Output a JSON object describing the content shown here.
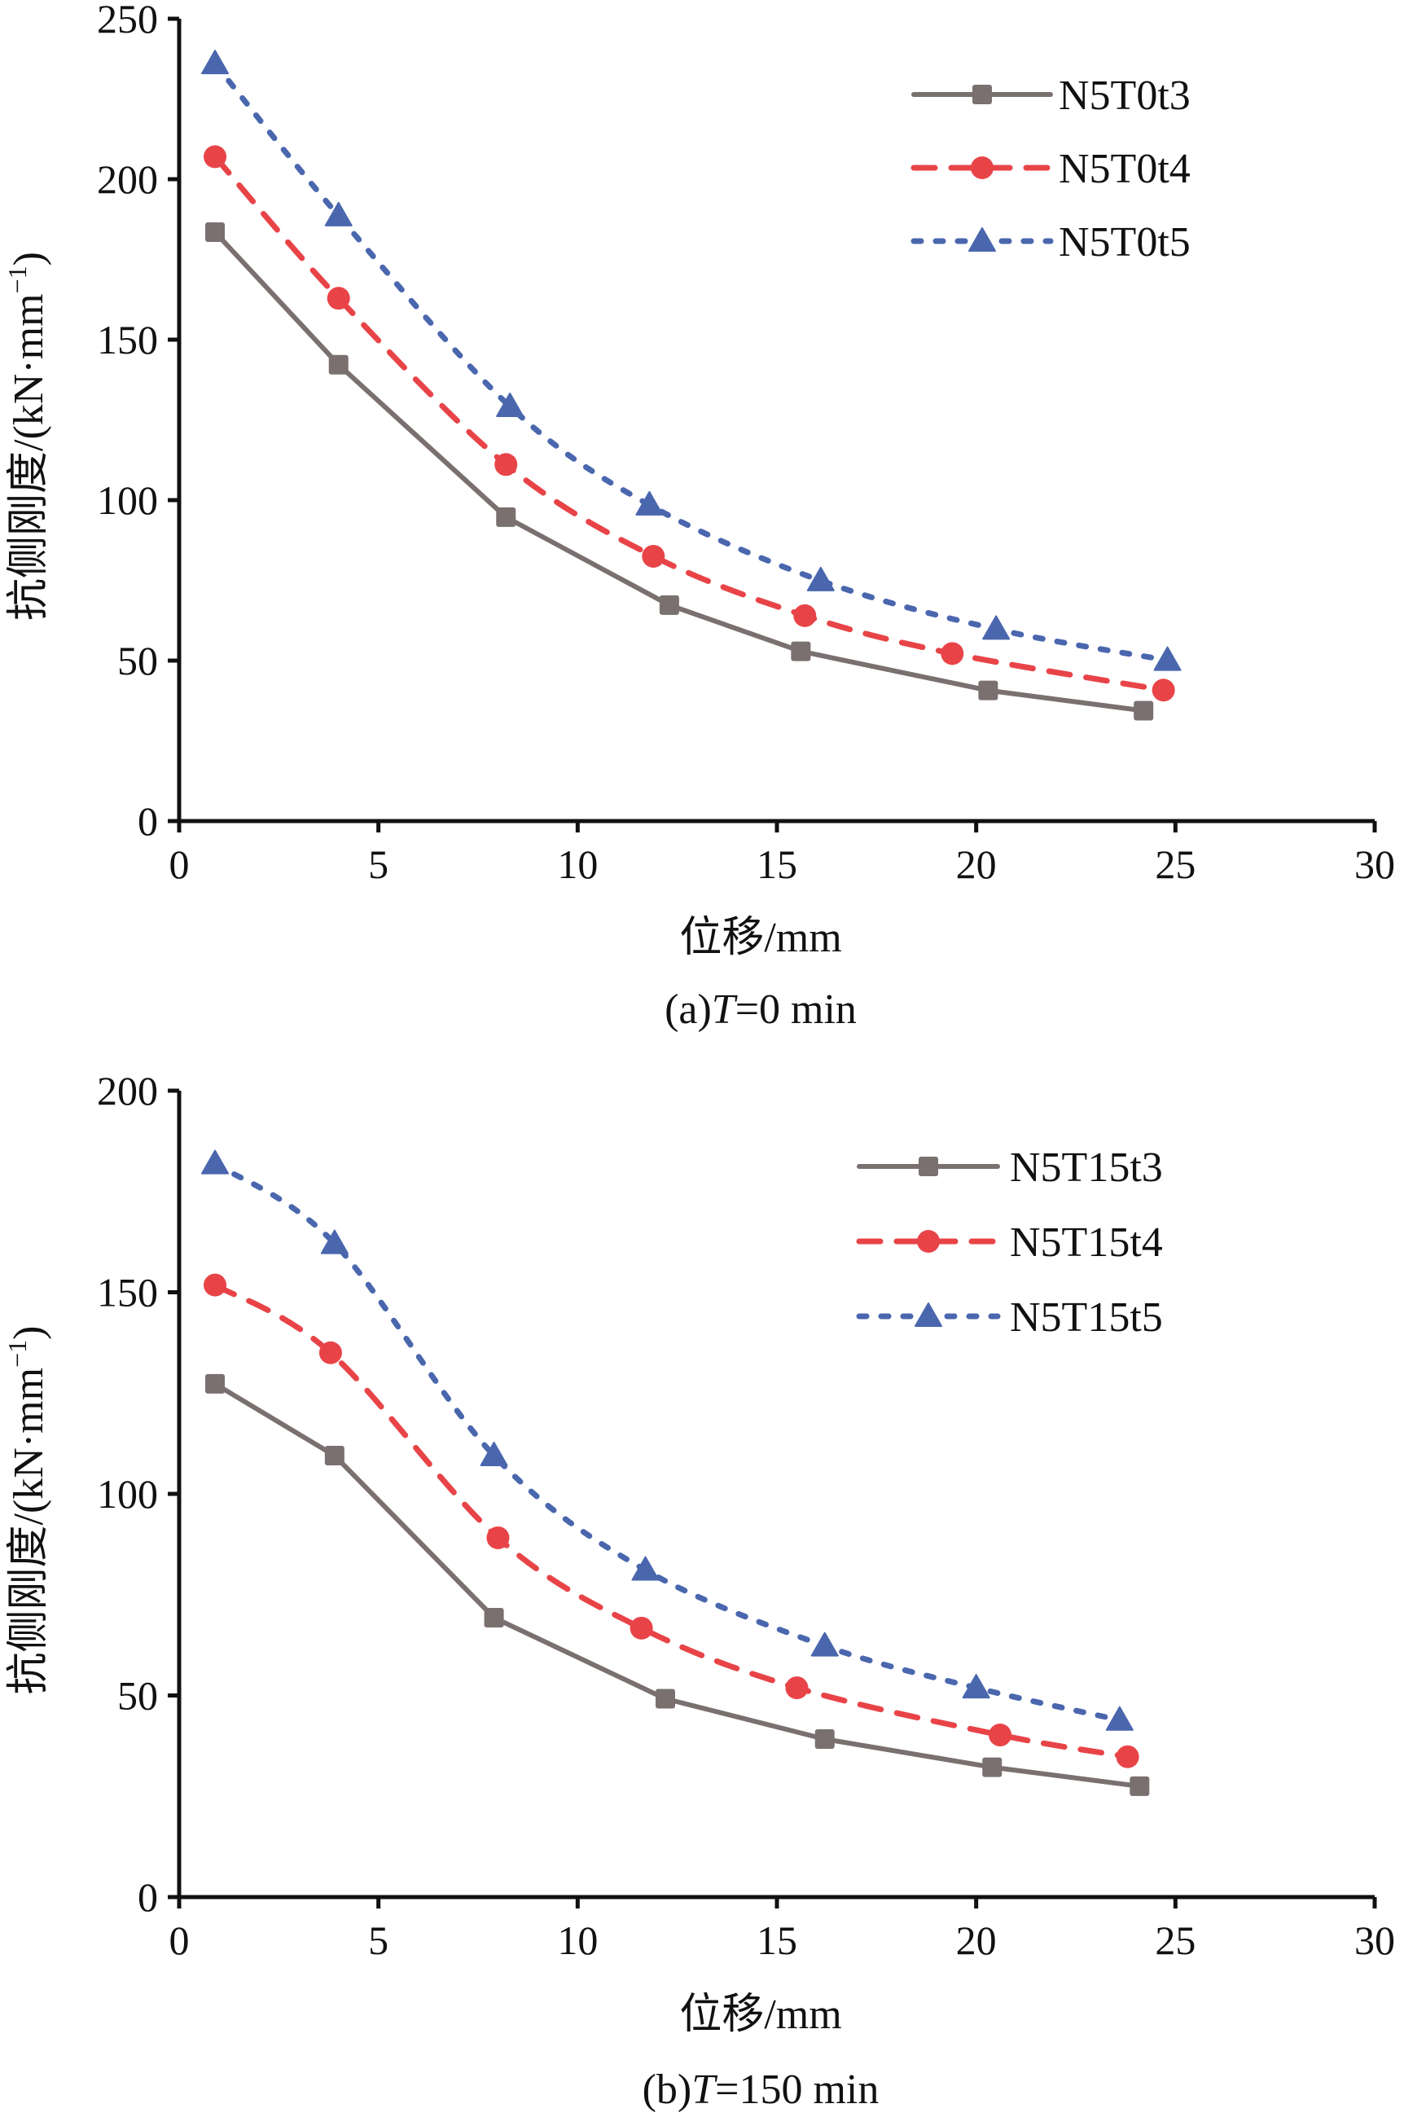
{
  "chart_data": [
    {
      "type": "line",
      "panel": "a",
      "caption_prefix": "(a)",
      "caption_var": "T",
      "caption_suffix": "=0 min",
      "xlabel": "位移/mm",
      "ylabel": "抗侧刚度/(kN·mm",
      "ylabel_sup": "−1",
      "ylabel_close": ")",
      "xlim": [
        0,
        30
      ],
      "ylim": [
        0,
        250
      ],
      "xticks": [
        0,
        5,
        10,
        15,
        20,
        25,
        30
      ],
      "yticks": [
        0,
        50,
        100,
        150,
        200,
        250
      ],
      "grid": false,
      "legend_position": "top-right",
      "series": [
        {
          "name": "N5T0t3",
          "color": "#7a7070",
          "style": "solid",
          "marker": "square",
          "x": [
            0.9,
            4.0,
            8.2,
            12.3,
            15.6,
            20.3,
            24.2
          ],
          "y": [
            183.5,
            142.2,
            94.7,
            67.3,
            52.9,
            40.7,
            34.4
          ]
        },
        {
          "name": "N5T0t4",
          "color": "#e84448",
          "style": "dashed",
          "marker": "circle",
          "x": [
            0.9,
            4.0,
            8.2,
            11.9,
            15.7,
            19.4,
            24.7
          ],
          "y": [
            207.0,
            162.9,
            111.1,
            82.5,
            64.0,
            52.2,
            40.8
          ]
        },
        {
          "name": "N5T0t5",
          "color": "#4a67ae",
          "style": "dotted",
          "marker": "triangle",
          "x": [
            0.9,
            4.0,
            8.3,
            11.8,
            16.1,
            20.5,
            24.8
          ],
          "y": [
            236.0,
            188.6,
            129.2,
            98.5,
            74.9,
            59.8,
            50.1
          ]
        }
      ]
    },
    {
      "type": "line",
      "panel": "b",
      "caption_prefix": "(b)",
      "caption_var": "T",
      "caption_suffix": "=150 min",
      "xlabel": "位移/mm",
      "ylabel": "抗侧刚度/(kN·mm",
      "ylabel_sup": "−1",
      "ylabel_close": ")",
      "xlim": [
        0,
        30
      ],
      "ylim": [
        0,
        200
      ],
      "xticks": [
        0,
        5,
        10,
        15,
        20,
        25,
        30
      ],
      "yticks": [
        0,
        50,
        100,
        150,
        200
      ],
      "grid": false,
      "legend_position": "top-right",
      "series": [
        {
          "name": "N5T15t3",
          "color": "#7a7070",
          "style": "solid",
          "marker": "square",
          "x": [
            0.9,
            3.9,
            7.9,
            12.2,
            16.2,
            20.4,
            24.1
          ],
          "y": [
            127.3,
            109.5,
            69.3,
            49.2,
            39.2,
            32.2,
            27.5
          ]
        },
        {
          "name": "N5T15t4",
          "color": "#e84448",
          "style": "dashed",
          "marker": "circle",
          "x": [
            0.9,
            3.8,
            8.0,
            11.6,
            15.5,
            20.6,
            23.8
          ],
          "y": [
            151.8,
            135.0,
            89.1,
            66.7,
            51.9,
            40.2,
            34.8
          ]
        },
        {
          "name": "N5T15t5",
          "color": "#4a67ae",
          "style": "dotted",
          "marker": "triangle",
          "x": [
            0.9,
            3.9,
            7.9,
            11.7,
            16.2,
            20.0,
            23.6
          ],
          "y": [
            181.9,
            162.1,
            109.5,
            81.1,
            62.3,
            51.9,
            43.9
          ]
        }
      ]
    }
  ]
}
